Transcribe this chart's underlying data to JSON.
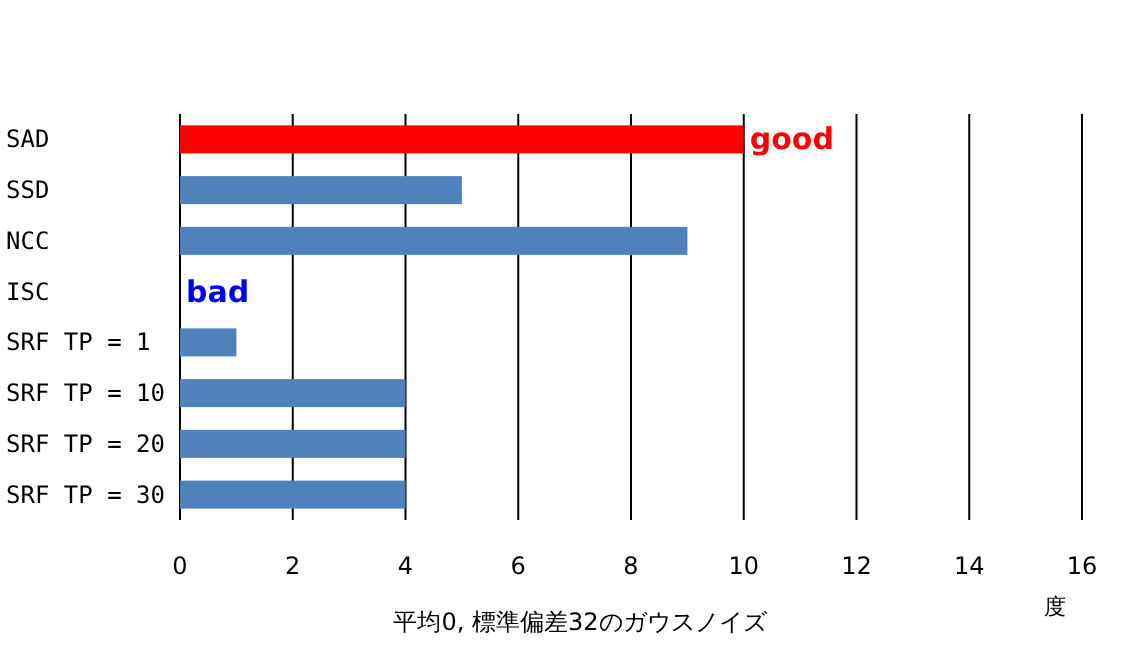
{
  "chart_data": {
    "type": "bar",
    "orientation": "horizontal",
    "categories": [
      "SAD",
      "SSD",
      "NCC",
      "ISC",
      "SRF TP = 1",
      "SRF TP = 10",
      "SRF TP = 20",
      "SRF TP = 30"
    ],
    "values": [
      10,
      5,
      9,
      0,
      1,
      4,
      4,
      4
    ],
    "colors": [
      "#ff0000",
      "#4f81bd",
      "#4f81bd",
      "#4f81bd",
      "#4f81bd",
      "#4f81bd",
      "#4f81bd",
      "#4f81bd"
    ],
    "xlim": [
      0,
      16
    ],
    "xticks": [
      0,
      2,
      4,
      6,
      8,
      10,
      12,
      14,
      16
    ],
    "grid": "x",
    "xlabel": "平均0, 標準偏差32のガウスノイズ",
    "annotations": [
      {
        "text": "good",
        "x": 10,
        "y": "SAD"
      },
      {
        "text": "bad",
        "x": 0,
        "y": "ISC"
      },
      "度"
    ]
  }
}
